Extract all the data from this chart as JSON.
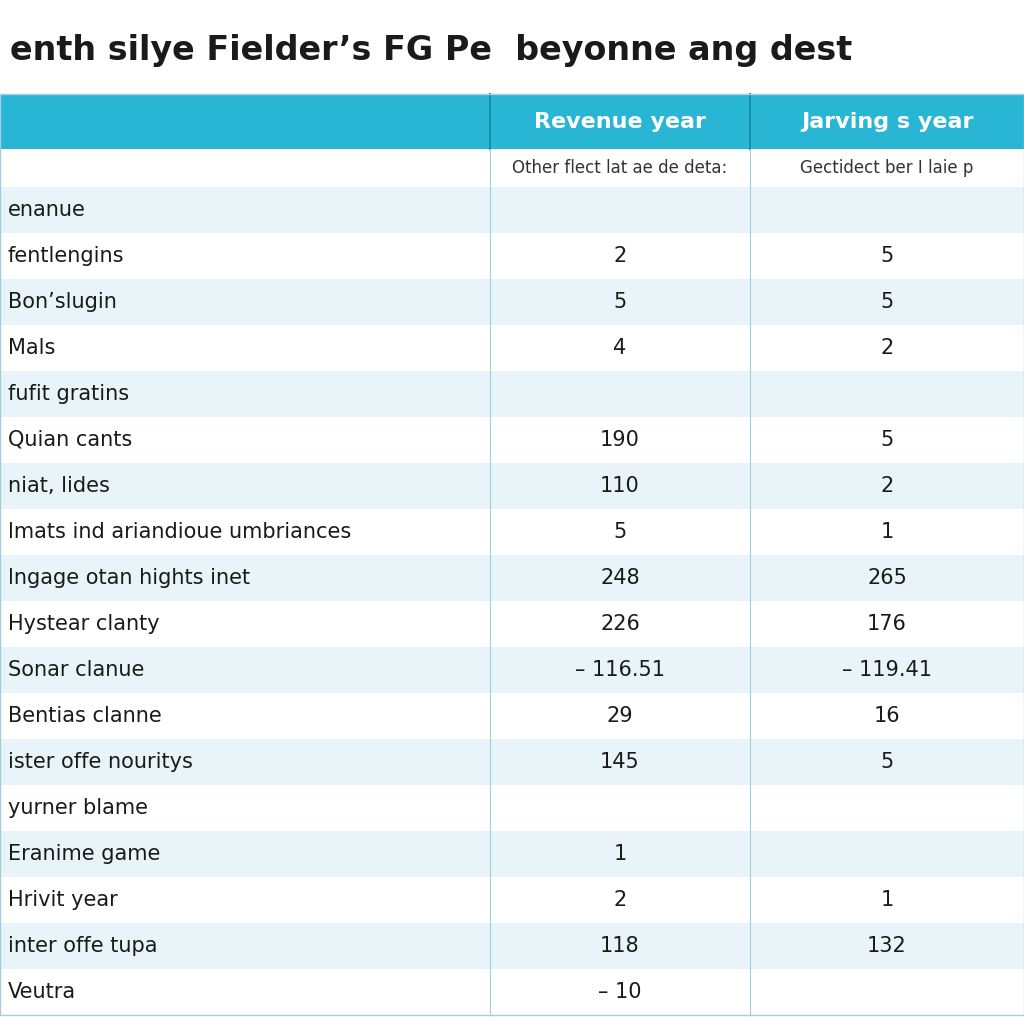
{
  "title": "enth silye Fielder’s FG Pe  beyonne ang dest",
  "col1_header": "Revenue year",
  "col2_header": "Jarving s year",
  "col1_subheader": "Other flect lat ae de deta:",
  "col2_subheader": "Gectidect ber I laie p",
  "header_bg": "#29b6d4",
  "subheader_bg": "#ffffff",
  "row_bg_light": "#e8f4f8",
  "row_bg_white": "#ffffff",
  "rows": [
    {
      "label": "enanue",
      "col1": "",
      "col2": ""
    },
    {
      "label": "fentlengins",
      "col1": "2",
      "col2": "5"
    },
    {
      "label": "Bon’slugin",
      "col1": "5",
      "col2": "5"
    },
    {
      "label": "Mals",
      "col1": "4",
      "col2": "2"
    },
    {
      "label": "fufit gratins",
      "col1": "",
      "col2": ""
    },
    {
      "label": "Quian cants",
      "col1": "190",
      "col2": "5"
    },
    {
      "label": "niat, lides",
      "col1": "110",
      "col2": "2"
    },
    {
      "label": "lmats ind ariandioue umbriances",
      "col1": "5",
      "col2": "1"
    },
    {
      "label": "lngage otan hights inet",
      "col1": "248",
      "col2": "265"
    },
    {
      "label": "Hystear clanty",
      "col1": "226",
      "col2": "176"
    },
    {
      "label": "Sonar clanue",
      "col1": "– 116.51",
      "col2": "– 119.41"
    },
    {
      "label": "Bentias clanne",
      "col1": "29",
      "col2": "16"
    },
    {
      "label": "ister offe nouritys",
      "col1": "145",
      "col2": "5"
    },
    {
      "label": "yurner blame",
      "col1": "",
      "col2": ""
    },
    {
      "label": "Eranime game",
      "col1": "1",
      "col2": ""
    },
    {
      "label": "Hrivit year",
      "col1": "2",
      "col2": "1"
    },
    {
      "label": "inter offe tupa",
      "col1": "118",
      "col2": "132"
    },
    {
      "label": "Veutra",
      "col1": "– 10",
      "col2": ""
    }
  ],
  "title_fontsize": 24,
  "header_fontsize": 16,
  "subheader_fontsize": 12,
  "row_fontsize": 15,
  "fig_bg": "#ffffff",
  "title_color": "#1a1a1a",
  "row_text_color": "#1a1a1a",
  "header_text_color": "#ffffff",
  "divider_color": "#a0cfe0",
  "header_divider_color": "#1a8fa8"
}
